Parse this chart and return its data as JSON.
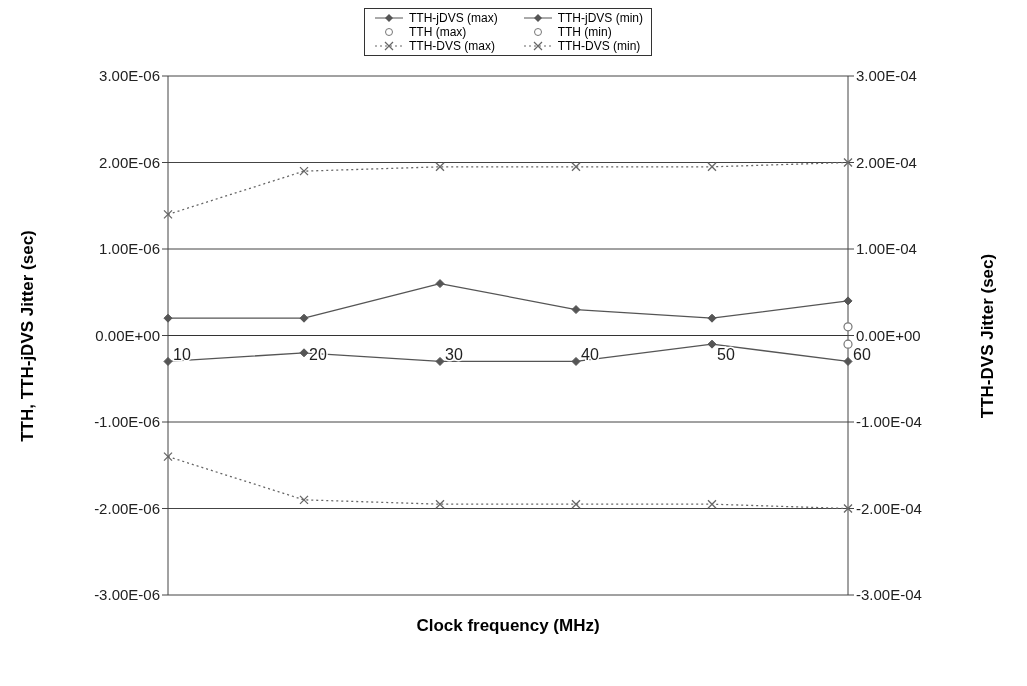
{
  "chart_data": {
    "type": "line",
    "xlabel": "Clock frequency (MHz)",
    "ylabel": "TTH, TTH-jDVS Jitter (sec)",
    "y2label": "TTH-DVS Jitter (sec)",
    "categories": [
      "10",
      "20",
      "30",
      "40",
      "50",
      "60"
    ],
    "series": [
      {
        "name": "TTH-jDVS (max)",
        "color": "#555555",
        "marker": "diamond",
        "line_style": "solid",
        "values": [
          2e-07,
          2e-07,
          6e-07,
          3e-07,
          2e-07,
          4e-07
        ]
      },
      {
        "name": "TTH-jDVS (min)",
        "color": "#555555",
        "marker": "diamond",
        "line_style": "solid",
        "values": [
          -3e-07,
          -2e-07,
          -3e-07,
          -3e-07,
          -1e-07,
          -3e-07
        ]
      },
      {
        "name": "TTH (max)",
        "type": "scatter",
        "color": "#777777",
        "marker": "circle",
        "values": [
          null,
          null,
          null,
          null,
          null,
          1e-07
        ]
      },
      {
        "name": "TTH (min)",
        "type": "scatter",
        "color": "#777777",
        "marker": "circle",
        "values": [
          null,
          null,
          null,
          null,
          null,
          -1e-07
        ]
      },
      {
        "name": "TTH-DVS (max)",
        "axis": "y2",
        "color": "#666666",
        "marker": "cross",
        "line_style": "dotted",
        "values": [
          0.00014,
          0.00019,
          0.000195,
          0.000195,
          0.000195,
          0.0002
        ]
      },
      {
        "name": "TTH-DVS (min)",
        "axis": "y2",
        "color": "#666666",
        "marker": "cross",
        "line_style": "dotted",
        "values": [
          -0.00014,
          -0.00019,
          -0.000195,
          -0.000195,
          -0.000195,
          -0.0002
        ]
      }
    ],
    "ylim": [
      -3e-06,
      3e-06
    ],
    "yticks": [
      {
        "value": -3e-06,
        "label": "-3.00E-06"
      },
      {
        "value": -2e-06,
        "label": "-2.00E-06"
      },
      {
        "value": -1e-06,
        "label": "-1.00E-06"
      },
      {
        "value": 0,
        "label": "0.00E+00"
      },
      {
        "value": 1e-06,
        "label": "1.00E-06"
      },
      {
        "value": 2e-06,
        "label": "2.00E-06"
      },
      {
        "value": 3e-06,
        "label": "3.00E-06"
      }
    ],
    "y2lim": [
      -0.0003,
      0.0003
    ],
    "y2ticks": [
      {
        "value": -0.0003,
        "label": "-3.00E-04"
      },
      {
        "value": -0.0002,
        "label": "-2.00E-04"
      },
      {
        "value": -0.0001,
        "label": "-1.00E-04"
      },
      {
        "value": 0,
        "label": "0.00E+00"
      },
      {
        "value": 0.0001,
        "label": "1.00E-04"
      },
      {
        "value": 0.0002,
        "label": "2.00E-04"
      },
      {
        "value": 0.0003,
        "label": "3.00E-04"
      }
    ],
    "grid": "y",
    "legend": "top"
  }
}
